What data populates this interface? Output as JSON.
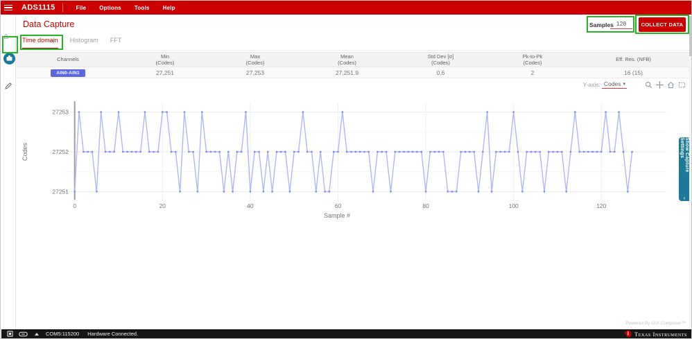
{
  "menubar": {
    "app_title": "ADS1115",
    "items": [
      {
        "label": "File"
      },
      {
        "label": "Options"
      },
      {
        "label": "Tools"
      },
      {
        "label": "Help"
      }
    ]
  },
  "sidebar": {
    "icons": [
      "home-icon",
      "data-capture-icon",
      "register-edit-icon"
    ]
  },
  "page": {
    "title": "Data Capture"
  },
  "capture_toolbar": {
    "samples_label": "Samples",
    "samples_value": "128",
    "collect_label": "COLLECT DATA"
  },
  "tabs": [
    {
      "label": "Time domain",
      "active": true
    },
    {
      "label": "Histogram",
      "active": false
    },
    {
      "label": "FFT",
      "active": false
    }
  ],
  "stats_table": {
    "columns": [
      {
        "line1": "Channels",
        "line2": ""
      },
      {
        "line1": "Min",
        "line2": "(Codes)"
      },
      {
        "line1": "Max",
        "line2": "(Codes)"
      },
      {
        "line1": "Mean",
        "line2": "(Codes)"
      },
      {
        "line1": "Std Dev [σ]",
        "line2": "(Codes)"
      },
      {
        "line1": "Pk-to-Pk",
        "line2": "(Codes)"
      },
      {
        "line1": "Eff. Res. (NFB)",
        "line2": ""
      }
    ],
    "rows": [
      {
        "channel": "AIN0-AIN1",
        "min": "27,251",
        "max": "27,253",
        "mean": "27,251.9",
        "std_dev": "0.6",
        "pk_to_pk": "2",
        "eff_res": "16 (15)"
      }
    ]
  },
  "chart_toolbar": {
    "y_axis_label": "Y-axis:",
    "y_axis_value": "Codes",
    "caret": "▾",
    "icons": [
      "zoom-icon",
      "pan-icon",
      "home-icon",
      "box-zoom-icon"
    ]
  },
  "chart_data": {
    "type": "line",
    "title": "",
    "xlabel": "Sample #",
    "ylabel": "Codes",
    "x_ticks": [
      0,
      20,
      40,
      60,
      80,
      100,
      120
    ],
    "y_ticks": [
      27251,
      27252,
      27253
    ],
    "y_minor_ticks": [
      27251.5,
      27252.5
    ],
    "xlim": [
      0,
      127
    ],
    "ylim": [
      27250.85,
      27253.15
    ],
    "grid": true,
    "legend_position": "none",
    "series": [
      {
        "name": "AIN0-AIN1",
        "color": "#b0b7f6",
        "marker_color": "#7e88ea",
        "values": [
          27251,
          27253,
          27252,
          27252,
          27252,
          27251,
          27253,
          27252,
          27252,
          27252,
          27253,
          27252,
          27252,
          27252,
          27252,
          27252,
          27253,
          27252,
          27252,
          27252,
          27253,
          27253,
          27252,
          27252,
          27251,
          27253,
          27252,
          27252,
          27251,
          27253,
          27252,
          27252,
          27252,
          27252,
          27251,
          27252,
          27251,
          27252,
          27252,
          27253,
          27251,
          27252,
          27252,
          27251,
          27252,
          27251,
          27252,
          27252,
          27252,
          27251,
          27252,
          27252,
          27253,
          27252,
          27252,
          27251,
          27252,
          27251,
          27251,
          27252,
          27252,
          27253,
          27252,
          27252,
          27252,
          27252,
          27252,
          27252,
          27251,
          27252,
          27252,
          27252,
          27251,
          27252,
          27252,
          27252,
          27252,
          27252,
          27252,
          27252,
          27251,
          27252,
          27252,
          27252,
          27252,
          27251,
          27251,
          27251,
          27252,
          27252,
          27252,
          27252,
          27251,
          27252,
          27253,
          27251,
          27252,
          27252,
          27252,
          27252,
          27253,
          27252,
          27251,
          27252,
          27252,
          27252,
          27252,
          27251,
          27252,
          27252,
          27252,
          27252,
          27251,
          27252,
          27253,
          27252,
          27252,
          27252,
          27252,
          27252,
          27252,
          27253,
          27252,
          27252,
          27253,
          27252,
          27251,
          27252
        ]
      }
    ]
  },
  "capture_settings": {
    "label": "Show Capture Settings",
    "chevron": "‹"
  },
  "status_bar": {
    "com": "COM5:115200",
    "message": "Hardware Connected.",
    "powered_by": "Powered By GUI Composer™",
    "brand": "Texas Instruments"
  },
  "colors": {
    "ti_red": "#cc0000",
    "channel_badge": "#5b68e0",
    "settings_tab_teal": "#1b7a99",
    "capture_icon_teal": "#177c9c",
    "annotation_green": "#27b427",
    "chart_line": "#b0b7f6",
    "chart_marker": "#7e88ea"
  }
}
